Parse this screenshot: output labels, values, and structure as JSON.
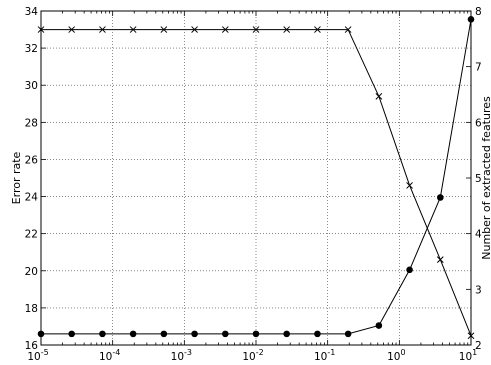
{
  "chart_data": {
    "type": "line",
    "title": "",
    "xlabel": "",
    "ylabel": "Error rate",
    "y2label": "Number of extracted features",
    "xscale": "log",
    "xlim": [
      1e-05,
      10
    ],
    "ylim": [
      16,
      34
    ],
    "y2lim": [
      2,
      8
    ],
    "grid": true,
    "legend": "none",
    "x_ticks": [
      {
        "value": 1e-05,
        "base": "10",
        "exp": "-5"
      },
      {
        "value": 0.0001,
        "base": "10",
        "exp": "-4"
      },
      {
        "value": 0.001,
        "base": "10",
        "exp": "-3"
      },
      {
        "value": 0.01,
        "base": "10",
        "exp": "-2"
      },
      {
        "value": 0.1,
        "base": "10",
        "exp": "-1"
      },
      {
        "value": 1,
        "base": "10",
        "exp": "0"
      },
      {
        "value": 10,
        "base": "10",
        "exp": "1"
      }
    ],
    "y_ticks": [
      "16",
      "18",
      "20",
      "22",
      "24",
      "26",
      "28",
      "30",
      "32",
      "34"
    ],
    "y2_ticks": [
      "2",
      "3",
      "4",
      "5",
      "6",
      "7",
      "8"
    ],
    "x": [
      1e-05,
      2.68e-05,
      7.2e-05,
      0.000193,
      0.000518,
      0.00139,
      0.00373,
      0.01,
      0.0268,
      0.072,
      0.193,
      0.518,
      1.39,
      3.73,
      10
    ],
    "series": [
      {
        "axis": "left",
        "marker": "x",
        "values": [
          33,
          33,
          33,
          33,
          33,
          33,
          33,
          33,
          33,
          33,
          33,
          29.4,
          24.6,
          20.6,
          16.5
        ]
      },
      {
        "axis": "right",
        "marker": "circle",
        "values": [
          2.2,
          2.2,
          2.2,
          2.2,
          2.2,
          2.2,
          2.2,
          2.2,
          2.2,
          2.2,
          2.2,
          2.35,
          3.35,
          4.65,
          7.85
        ]
      }
    ]
  }
}
